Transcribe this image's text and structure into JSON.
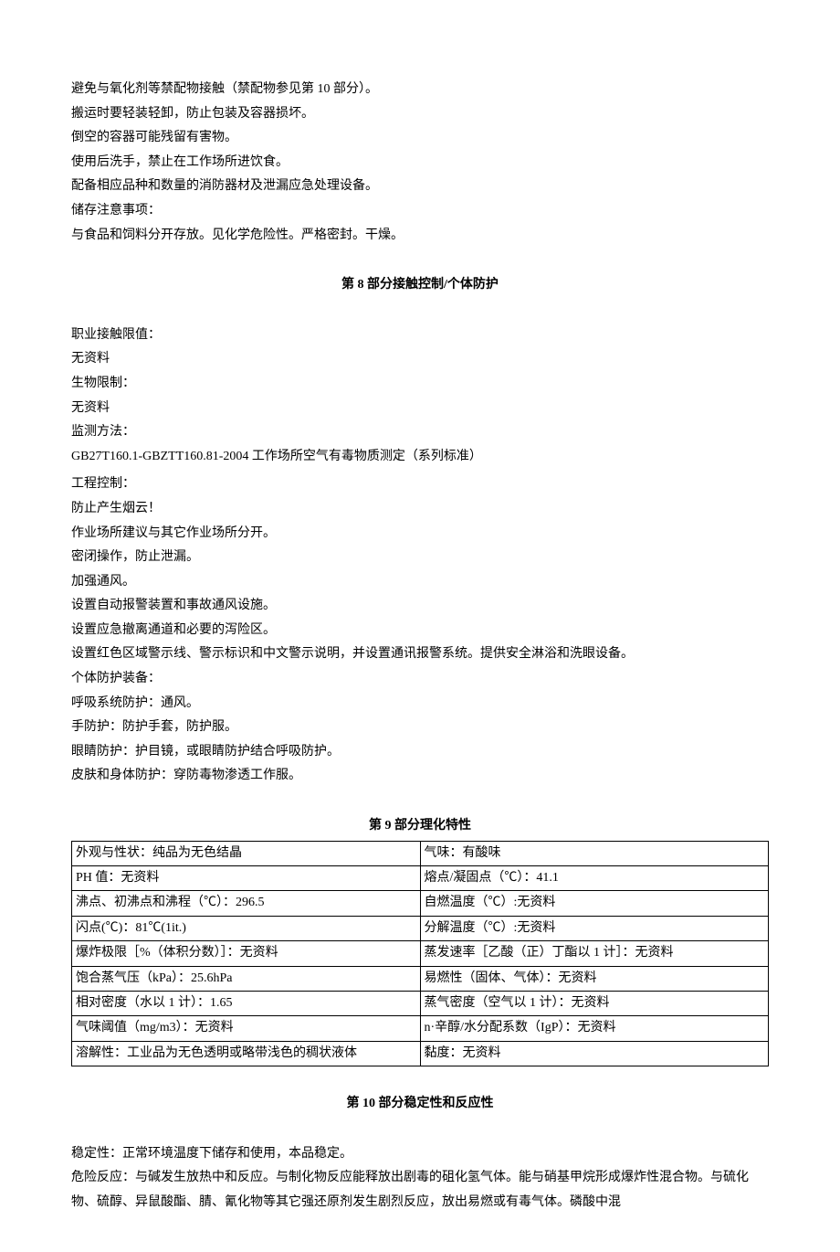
{
  "section7": {
    "lines": [
      "避免与氧化剂等禁配物接触（禁配物参见第 10 部分）。",
      "搬运时要轻装轻卸，防止包装及容器损坏。",
      "倒空的容器可能残留有害物。",
      "使用后洗手，禁止在工作场所进饮食。",
      "配备相应品种和数量的消防器材及泄漏应急处理设备。",
      "储存注意事项：",
      "与食品和饲料分开存放。见化学危险性。严格密封。干燥。"
    ]
  },
  "section8": {
    "title_prefix": "第 ",
    "title_num": "8",
    "title_suffix": " 部分接触控制/个体防护",
    "lines": [
      "职业接触限值：",
      "无资料",
      "生物限制：",
      "无资料",
      "监测方法：",
      "GB27T160.1-GBZTT160.81-2004 工作场所空气有毒物质测定（系列标准）",
      "工程控制：",
      "防止产生烟云！",
      "作业场所建议与其它作业场所分开。",
      "密闭操作，防止泄漏。",
      "加强通风。",
      "设置自动报警装置和事故通风设施。",
      "设置应急撤离通道和必要的泻险区。",
      "设置红色区域警示线、警示标识和中文警示说明，并设置通讯报警系统。提供安全淋浴和洗眼设备。",
      "个体防护装备：",
      "呼吸系统防护：通风。",
      "手防护：防护手套，防护服。",
      "眼睛防护：护目镜，或眼睛防护结合呼吸防护。",
      "皮肤和身体防护：穿防毒物渗透工作服。"
    ]
  },
  "section9": {
    "title_prefix": "第 ",
    "title_num": "9",
    "title_suffix": " 部分理化特性",
    "rows": [
      [
        "外观与性状：纯品为无色结晶",
        "气味：有酸味"
      ],
      [
        "PH 值：无资料",
        "熔点/凝固点（℃）：41.1"
      ],
      [
        "沸点、初沸点和沸程（℃）：296.5",
        "自燃温度（℃）:无资料"
      ],
      [
        "闪点(℃)：81℃(1it.)",
        "分解温度（℃）:无资料"
      ],
      [
        "爆炸极限［%（体积分数）］：无资料",
        "蒸发速率［乙酸（正）丁酯以 1 计］：无资料"
      ],
      [
        "饱合蒸气压（kPa）：25.6hPa",
        "易燃性（固体、气体）：无资料"
      ],
      [
        "相对密度（水以 1 计）：1.65",
        "蒸气密度（空气以 1 计）：无资料"
      ],
      [
        "气味阈值（mg/m3）：无资料",
        "n·辛醇/水分配系数（IgP）：无资料"
      ],
      [
        "溶解性：工业品为无色透明或略带浅色的稠状液体",
        "黏度：无资料"
      ]
    ]
  },
  "section10": {
    "title_prefix": "第 ",
    "title_num": "10",
    "title_suffix": " 部分稳定性和反应性",
    "lines": [
      "稳定性：正常环境温度下储存和使用，本品稳定。",
      "危险反应：与碱发生放热中和反应。与制化物反应能释放出剧毒的砠化氢气体。能与硝基甲烷形成爆炸性混合物。与硫化物、硫醇、异鼠酸酯、腈、氰化物等其它强还原剂发生剧烈反应，放出易燃或有毒气体。磷酸中混"
    ]
  }
}
